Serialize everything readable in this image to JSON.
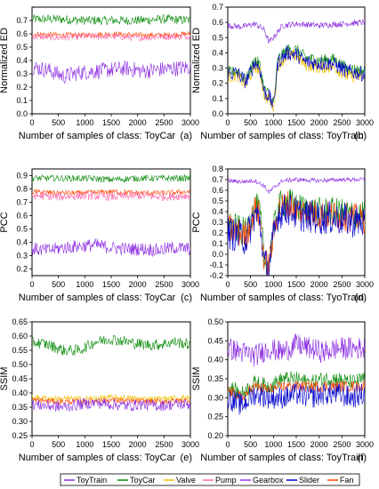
{
  "figure": {
    "legend": [
      "ToyTrain",
      "ToyCar",
      "Valve",
      "Pump",
      "Gearbox",
      "Slider",
      "Fan"
    ],
    "legend_colors": [
      "#8a2be2",
      "#0a8a0a",
      "#f0c000",
      "#ff66aa",
      "#9b30ff",
      "#0000cc",
      "#ff4500"
    ]
  },
  "chart_data": [
    {
      "type": "line",
      "panel_label": "(a)",
      "xlabel": "Number of samples of class: ToyCar",
      "ylabel": "Normalized ED",
      "xlim": [
        0,
        3000
      ],
      "ylim": [
        0,
        0.8
      ],
      "xticks": [
        0,
        500,
        1000,
        1500,
        2000,
        2500,
        3000
      ],
      "yticks": [
        0.0,
        0.1,
        0.2,
        0.3,
        0.4,
        0.5,
        0.6,
        0.7
      ],
      "ytick_labels": [
        "0.0",
        "0.1",
        "0.2",
        "0.3",
        "0.4",
        "0.5",
        "0.6",
        "0.7"
      ],
      "series": [
        {
          "color": "#0a8a0a",
          "x": [
            0,
            500,
            1000,
            1500,
            2000,
            2500,
            3000
          ],
          "y": [
            0.71,
            0.71,
            0.7,
            0.7,
            0.7,
            0.71,
            0.7
          ],
          "spread": 0.035
        },
        {
          "color": "#ff4500",
          "x": [
            0,
            500,
            1000,
            1500,
            2000,
            2500,
            3000
          ],
          "y": [
            0.6,
            0.59,
            0.59,
            0.6,
            0.59,
            0.59,
            0.6
          ],
          "spread": 0.02
        },
        {
          "color": "#ff66aa",
          "x": [
            0,
            500,
            1000,
            1500,
            2000,
            2500,
            3000
          ],
          "y": [
            0.58,
            0.57,
            0.58,
            0.58,
            0.57,
            0.58,
            0.58
          ],
          "spread": 0.025
        },
        {
          "color": "#8a2be2",
          "x": [
            0,
            300,
            600,
            900,
            1200,
            1500,
            1800,
            2100,
            2400,
            2700,
            3000
          ],
          "y": [
            0.35,
            0.33,
            0.28,
            0.31,
            0.32,
            0.33,
            0.34,
            0.32,
            0.33,
            0.34,
            0.35
          ],
          "spread": 0.06
        }
      ]
    },
    {
      "type": "line",
      "panel_label": "(b)",
      "xlabel": "Number of samples of class: ToyTrain",
      "ylabel": "Normalized ED",
      "xlim": [
        0,
        3000
      ],
      "ylim": [
        0,
        0.7
      ],
      "xticks": [
        0,
        500,
        1000,
        1500,
        2000,
        2500,
        3000
      ],
      "yticks": [
        0.0,
        0.1,
        0.2,
        0.3,
        0.4,
        0.5,
        0.6,
        0.7
      ],
      "ytick_labels": [
        "0.0",
        "0.1",
        "0.2",
        "0.3",
        "0.4",
        "0.5",
        "0.6",
        "0.7"
      ],
      "series": [
        {
          "color": "#8a2be2",
          "x": [
            0,
            300,
            600,
            800,
            900,
            1000,
            1200,
            1500,
            2000,
            2500,
            3000
          ],
          "y": [
            0.58,
            0.57,
            0.59,
            0.55,
            0.47,
            0.5,
            0.58,
            0.59,
            0.58,
            0.59,
            0.6
          ],
          "spread": 0.02
        },
        {
          "color": "#0a8a0a",
          "x": [
            0,
            200,
            400,
            600,
            700,
            800,
            900,
            1000,
            1100,
            1300,
            1500,
            1700,
            2000,
            2300,
            2600,
            3000
          ],
          "y": [
            0.27,
            0.28,
            0.22,
            0.36,
            0.32,
            0.16,
            0.13,
            0.06,
            0.36,
            0.42,
            0.42,
            0.37,
            0.35,
            0.36,
            0.3,
            0.28
          ],
          "spread": 0.04
        },
        {
          "color": "#f0c000",
          "x": [
            0,
            200,
            400,
            600,
            700,
            800,
            900,
            1000,
            1100,
            1300,
            1500,
            1700,
            2000,
            2300,
            2600,
            3000
          ],
          "y": [
            0.24,
            0.25,
            0.19,
            0.31,
            0.28,
            0.12,
            0.1,
            0.04,
            0.32,
            0.38,
            0.38,
            0.32,
            0.3,
            0.31,
            0.25,
            0.24
          ],
          "spread": 0.04
        },
        {
          "color": "#0000cc",
          "x": [
            0,
            200,
            400,
            600,
            700,
            800,
            900,
            1000,
            1100,
            1300,
            1500,
            1700,
            2000,
            2300,
            2600,
            3000
          ],
          "y": [
            0.26,
            0.27,
            0.21,
            0.34,
            0.3,
            0.14,
            0.12,
            0.05,
            0.34,
            0.4,
            0.39,
            0.34,
            0.33,
            0.33,
            0.28,
            0.26
          ],
          "spread": 0.05
        }
      ]
    },
    {
      "type": "line",
      "panel_label": "(c)",
      "xlabel": "Number of samples of class: ToyCar",
      "ylabel": "PCC",
      "xlim": [
        0,
        3000
      ],
      "ylim": [
        0.15,
        0.95
      ],
      "xticks": [
        0,
        500,
        1000,
        1500,
        2000,
        2500,
        3000
      ],
      "yticks": [
        0.2,
        0.3,
        0.4,
        0.5,
        0.6,
        0.7,
        0.8,
        0.9
      ],
      "ytick_labels": [
        "0.2",
        "0.3",
        "0.4",
        "0.5",
        "0.6",
        "0.7",
        "0.8",
        "0.9"
      ],
      "series": [
        {
          "color": "#0a8a0a",
          "x": [
            0,
            500,
            1000,
            1500,
            2000,
            2500,
            3000
          ],
          "y": [
            0.88,
            0.88,
            0.88,
            0.87,
            0.88,
            0.88,
            0.88
          ],
          "spread": 0.025
        },
        {
          "color": "#ff4500",
          "x": [
            0,
            500,
            1000,
            1500,
            2000,
            2500,
            3000
          ],
          "y": [
            0.78,
            0.77,
            0.77,
            0.78,
            0.77,
            0.77,
            0.78
          ],
          "spread": 0.02
        },
        {
          "color": "#ff66aa",
          "x": [
            0,
            500,
            1000,
            1500,
            2000,
            2500,
            3000
          ],
          "y": [
            0.75,
            0.74,
            0.75,
            0.74,
            0.75,
            0.74,
            0.75
          ],
          "spread": 0.03
        },
        {
          "color": "#8a2be2",
          "x": [
            0,
            300,
            600,
            900,
            1200,
            1500,
            1800,
            2100,
            2400,
            2700,
            3000
          ],
          "y": [
            0.35,
            0.34,
            0.36,
            0.37,
            0.38,
            0.36,
            0.35,
            0.35,
            0.34,
            0.36,
            0.35
          ],
          "spread": 0.05
        }
      ]
    },
    {
      "type": "line",
      "panel_label": "(d)",
      "xlabel": "Number of samples of class: TyoTrain",
      "ylabel": "PCC",
      "xlim": [
        0,
        3000
      ],
      "ylim": [
        -0.2,
        0.8
      ],
      "xticks": [
        0,
        500,
        1000,
        1500,
        2000,
        2500,
        3000
      ],
      "yticks": [
        -0.2,
        -0.1,
        0.0,
        0.1,
        0.2,
        0.3,
        0.4,
        0.5,
        0.6,
        0.7,
        0.8
      ],
      "ytick_labels": [
        "-0.2",
        "-0.1",
        "0.0",
        "0.1",
        "0.2",
        "0.3",
        "0.4",
        "0.5",
        "0.6",
        "0.7",
        "0.8"
      ],
      "series": [
        {
          "color": "#8a2be2",
          "x": [
            0,
            300,
            600,
            800,
            900,
            1000,
            1200,
            1500,
            2000,
            2500,
            3000
          ],
          "y": [
            0.69,
            0.68,
            0.69,
            0.64,
            0.58,
            0.62,
            0.69,
            0.7,
            0.69,
            0.7,
            0.7
          ],
          "spread": 0.02
        },
        {
          "color": "#0a8a0a",
          "x": [
            0,
            200,
            400,
            600,
            700,
            800,
            900,
            1000,
            1100,
            1300,
            1500,
            1700,
            2000,
            2300,
            2600,
            3000
          ],
          "y": [
            0.27,
            0.24,
            0.2,
            0.45,
            0.4,
            -0.05,
            -0.08,
            0.2,
            0.45,
            0.5,
            0.44,
            0.42,
            0.4,
            0.4,
            0.38,
            0.36
          ],
          "spread": 0.14
        },
        {
          "color": "#ff4500",
          "x": [
            0,
            200,
            400,
            600,
            700,
            800,
            900,
            1000,
            1100,
            1300,
            1500,
            1700,
            2000,
            2300,
            2600,
            3000
          ],
          "y": [
            0.24,
            0.21,
            0.17,
            0.42,
            0.37,
            -0.08,
            -0.1,
            0.18,
            0.42,
            0.47,
            0.42,
            0.4,
            0.37,
            0.37,
            0.35,
            0.33
          ],
          "spread": 0.14
        },
        {
          "color": "#0000cc",
          "x": [
            0,
            200,
            400,
            600,
            700,
            800,
            900,
            1000,
            1100,
            1300,
            1500,
            1700,
            2000,
            2300,
            2600,
            3000
          ],
          "y": [
            0.2,
            0.18,
            0.14,
            0.38,
            0.33,
            -0.1,
            -0.12,
            0.15,
            0.38,
            0.43,
            0.38,
            0.36,
            0.34,
            0.34,
            0.32,
            0.3
          ],
          "spread": 0.16
        }
      ]
    },
    {
      "type": "line",
      "panel_label": "(e)",
      "xlabel": "Number of samples of class: ToyCar",
      "ylabel": "SSIM",
      "xlim": [
        0,
        3000
      ],
      "ylim": [
        0.25,
        0.65
      ],
      "xticks": [
        0,
        500,
        1000,
        1500,
        2000,
        2500,
        3000
      ],
      "yticks": [
        0.25,
        0.3,
        0.35,
        0.4,
        0.45,
        0.5,
        0.55,
        0.6,
        0.65
      ],
      "ytick_labels": [
        "0.25",
        "0.30",
        "0.35",
        "0.40",
        "0.45",
        "0.50",
        "0.55",
        "0.60",
        "0.65"
      ],
      "series": [
        {
          "color": "#0a8a0a",
          "x": [
            0,
            300,
            600,
            900,
            1200,
            1500,
            1800,
            2100,
            2400,
            2700,
            3000
          ],
          "y": [
            0.58,
            0.57,
            0.55,
            0.55,
            0.58,
            0.59,
            0.58,
            0.57,
            0.57,
            0.58,
            0.57
          ],
          "spread": 0.02
        },
        {
          "color": "#f0c000",
          "x": [
            0,
            500,
            1000,
            1500,
            2000,
            2500,
            3000
          ],
          "y": [
            0.385,
            0.38,
            0.38,
            0.385,
            0.38,
            0.38,
            0.385
          ],
          "spread": 0.01
        },
        {
          "color": "#ff4500",
          "x": [
            0,
            500,
            1000,
            1500,
            2000,
            2500,
            3000
          ],
          "y": [
            0.375,
            0.37,
            0.37,
            0.375,
            0.37,
            0.37,
            0.375
          ],
          "spread": 0.01
        },
        {
          "color": "#8a2be2",
          "x": [
            0,
            300,
            600,
            900,
            1200,
            1500,
            1800,
            2100,
            2400,
            2700,
            3000
          ],
          "y": [
            0.36,
            0.355,
            0.35,
            0.36,
            0.365,
            0.36,
            0.355,
            0.36,
            0.355,
            0.36,
            0.36
          ],
          "spread": 0.02
        }
      ]
    },
    {
      "type": "line",
      "panel_label": "(f)",
      "xlabel": "Number of samples of class: ToyTrain",
      "ylabel": "SSIM",
      "xlim": [
        0,
        3000
      ],
      "ylim": [
        0.2,
        0.5
      ],
      "xticks": [
        0,
        500,
        1000,
        1500,
        2000,
        2500,
        3000
      ],
      "yticks": [
        0.2,
        0.25,
        0.3,
        0.35,
        0.4,
        0.45,
        0.5
      ],
      "ytick_labels": [
        "0.20",
        "0.25",
        "0.30",
        "0.35",
        "0.40",
        "0.45",
        "0.50"
      ],
      "series": [
        {
          "color": "#8a2be2",
          "x": [
            0,
            300,
            600,
            900,
            1200,
            1500,
            1800,
            2100,
            2400,
            2700,
            3000
          ],
          "y": [
            0.43,
            0.42,
            0.41,
            0.43,
            0.42,
            0.44,
            0.43,
            0.42,
            0.43,
            0.43,
            0.43
          ],
          "spread": 0.03
        },
        {
          "color": "#0a8a0a",
          "x": [
            0,
            300,
            600,
            900,
            1200,
            1500,
            1800,
            2100,
            2400,
            2700,
            3000
          ],
          "y": [
            0.33,
            0.31,
            0.34,
            0.33,
            0.35,
            0.35,
            0.34,
            0.35,
            0.35,
            0.34,
            0.35
          ],
          "spread": 0.02
        },
        {
          "color": "#ff4500",
          "x": [
            0,
            300,
            600,
            900,
            1200,
            1500,
            1800,
            2100,
            2400,
            2700,
            3000
          ],
          "y": [
            0.32,
            0.3,
            0.33,
            0.32,
            0.33,
            0.33,
            0.33,
            0.33,
            0.33,
            0.33,
            0.33
          ],
          "spread": 0.015
        },
        {
          "color": "#0000cc",
          "x": [
            0,
            300,
            600,
            900,
            1200,
            1500,
            1800,
            2100,
            2400,
            2700,
            3000
          ],
          "y": [
            0.3,
            0.28,
            0.31,
            0.3,
            0.3,
            0.31,
            0.3,
            0.31,
            0.31,
            0.3,
            0.31
          ],
          "spread": 0.03
        }
      ]
    }
  ]
}
